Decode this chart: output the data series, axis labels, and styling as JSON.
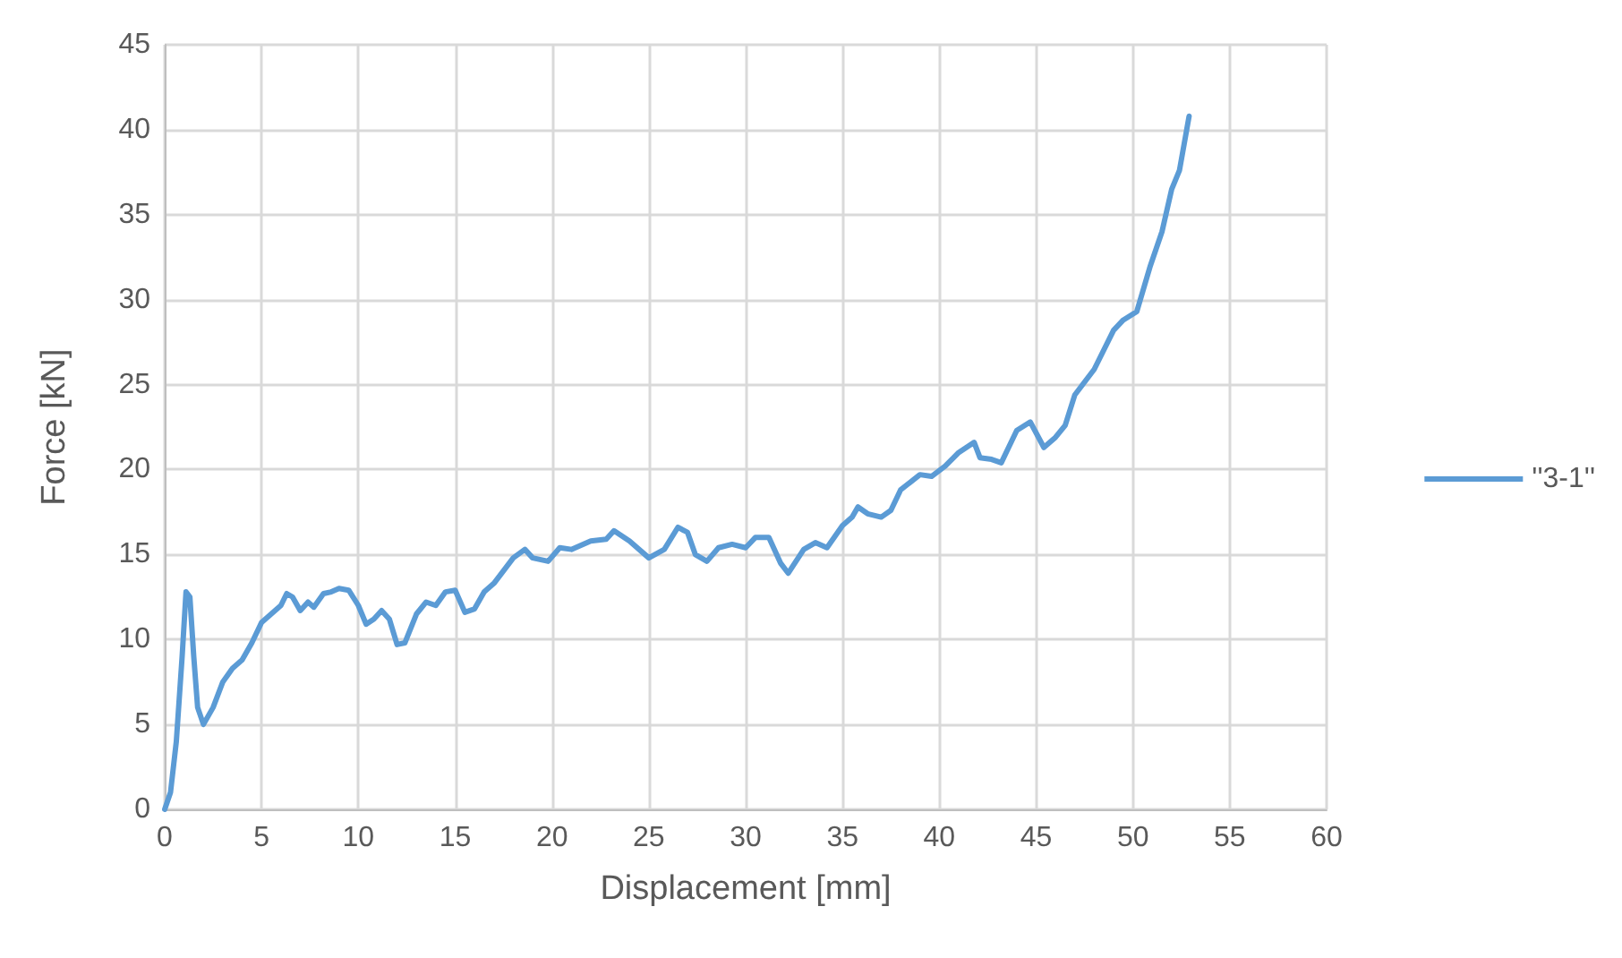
{
  "chart_data": {
    "type": "line",
    "xlabel": "Displacement [mm]",
    "ylabel": "Force [kN]",
    "xlim": [
      0,
      60
    ],
    "xticks": [
      0,
      5,
      10,
      15,
      20,
      25,
      30,
      35,
      40,
      45,
      50,
      55,
      60
    ],
    "ylim": [
      0,
      45
    ],
    "yticks": [
      0,
      5,
      10,
      15,
      20,
      25,
      30,
      35,
      40,
      45
    ],
    "grid": true,
    "legend": "right",
    "marker": "none",
    "line_style": "solid",
    "series": [
      {
        "name": "''3-1''",
        "color": "#5b9bd5",
        "x": [
          0,
          0.3,
          0.6,
          0.9,
          1.1,
          1.3,
          1.5,
          1.7,
          2,
          2.5,
          3,
          3.5,
          4,
          4.5,
          5,
          5.5,
          6,
          6.3,
          6.6,
          7,
          7.4,
          7.7,
          8.2,
          8.6,
          9,
          9.5,
          10,
          10.4,
          10.8,
          11.2,
          11.6,
          12,
          12.4,
          13,
          13.5,
          14,
          14.5,
          15,
          15.5,
          16,
          16.5,
          17,
          18,
          18.6,
          19,
          19.8,
          20.4,
          21,
          22,
          22.8,
          23.2,
          24,
          25,
          25.8,
          26.5,
          27,
          27.4,
          28,
          28.6,
          29.3,
          30,
          30.5,
          31.2,
          31.8,
          32.2,
          33,
          33.6,
          34.2,
          35,
          35.5,
          35.8,
          36.3,
          37,
          37.5,
          38,
          39,
          39.6,
          40.3,
          41,
          41.8,
          42.1,
          42.7,
          43.2,
          44,
          44.7,
          45.4,
          46,
          46.5,
          47,
          48,
          49,
          49.5,
          50.2,
          50.9,
          51.5,
          52,
          52.4,
          52.9
        ],
        "values": [
          0,
          1,
          4,
          9,
          12.8,
          12.5,
          9,
          6,
          5,
          6,
          7.5,
          8.3,
          8.8,
          9.8,
          11,
          11.5,
          12,
          12.7,
          12.5,
          11.7,
          12.2,
          11.9,
          12.7,
          12.8,
          13,
          12.9,
          12,
          10.9,
          11.2,
          11.7,
          11.2,
          9.7,
          9.8,
          11.5,
          12.2,
          12,
          12.8,
          12.9,
          11.6,
          11.8,
          12.8,
          13.3,
          14.8,
          15.3,
          14.8,
          14.6,
          15.4,
          15.3,
          15.8,
          15.9,
          16.4,
          15.8,
          14.8,
          15.3,
          16.6,
          16.3,
          15,
          14.6,
          15.4,
          15.6,
          15.4,
          16,
          16,
          14.5,
          13.9,
          15.3,
          15.7,
          15.4,
          16.7,
          17.2,
          17.8,
          17.4,
          17.2,
          17.6,
          18.8,
          19.7,
          19.6,
          20.2,
          21,
          21.6,
          20.7,
          20.6,
          20.4,
          22.3,
          22.8,
          21.3,
          21.9,
          22.6,
          24.4,
          25.9,
          28.2,
          28.8,
          29.3,
          32,
          34,
          36.5,
          37.6,
          40.8
        ]
      }
    ]
  }
}
